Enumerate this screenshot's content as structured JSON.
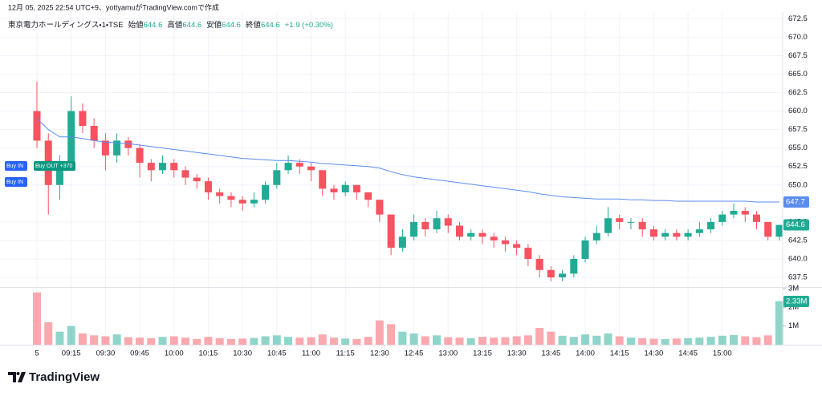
{
  "chart_data": {
    "type": "candlestick",
    "caption": "12月 05, 2025 22:54 UTC+9、yottyamuがTradingView.comで作成",
    "symbol": "東京電力ホールディングス・1・TSE",
    "legend": [
      {
        "label": "始値",
        "value": 644.6
      },
      {
        "label": "高値",
        "value": 644.6
      },
      {
        "label": "安値",
        "value": 644.6
      },
      {
        "label": "終値",
        "value": 644.6
      }
    ],
    "change": "+1.9 (+0.30%)",
    "up_color": "#22ab94",
    "down_color": "#f7525f",
    "categories": [
      "5",
      null,
      null,
      "09:15",
      null,
      null,
      "09:30",
      null,
      null,
      "09:45",
      null,
      null,
      "10:00",
      null,
      null,
      "10:15",
      null,
      null,
      "10:30",
      null,
      null,
      "10:45",
      null,
      null,
      "11:00",
      null,
      null,
      "11:15",
      null,
      null,
      "12:30",
      null,
      null,
      "12:45",
      null,
      null,
      "13:00",
      null,
      null,
      "13:15",
      null,
      null,
      "13:30",
      null,
      null,
      "13:45",
      null,
      null,
      "14:00",
      null,
      null,
      "14:15",
      null,
      null,
      "14:30",
      null,
      null,
      "14:45",
      null,
      null,
      "15:00",
      null,
      null,
      null,
      null,
      null
    ],
    "open": [
      660,
      656,
      650,
      653,
      660,
      658,
      656,
      654,
      656,
      655,
      653,
      652,
      653,
      652,
      651,
      650.5,
      649,
      648.5,
      648,
      647.5,
      648,
      650,
      652,
      653,
      652.5,
      652,
      649.5,
      649,
      650,
      649,
      648,
      646,
      641.5,
      643,
      645,
      644,
      645.5,
      644.5,
      643,
      643.5,
      643,
      642.5,
      642,
      641.5,
      640,
      638.5,
      637.5,
      638,
      640,
      642.5,
      643.5,
      645.5,
      645,
      645,
      644,
      643,
      643.5,
      643,
      643.5,
      644,
      645,
      646,
      646.5,
      646,
      645,
      643
    ],
    "high": [
      664,
      657,
      654,
      662,
      661,
      659,
      657,
      657,
      656.5,
      655.5,
      653.5,
      654,
      653.5,
      652.5,
      651.5,
      651,
      649.5,
      649,
      648.5,
      649,
      650.5,
      653,
      654,
      653.5,
      653,
      652,
      650,
      650.5,
      650,
      649,
      648,
      646,
      644,
      646,
      645.5,
      646.5,
      646,
      645,
      644,
      644,
      643.5,
      643,
      642.5,
      642,
      640.5,
      639,
      638.5,
      640.5,
      643,
      644.5,
      647,
      646,
      645.5,
      645.5,
      644.5,
      644,
      644,
      644,
      645,
      645.5,
      646.5,
      647.5,
      647,
      646.5,
      645,
      644.6
    ],
    "low": [
      655,
      646,
      648,
      652,
      657,
      655,
      652,
      653,
      654,
      651,
      650.5,
      651.5,
      651,
      650,
      649.5,
      648,
      647.5,
      647,
      646.5,
      647,
      647.5,
      649.5,
      651.5,
      651.5,
      650.5,
      648.5,
      648,
      648.5,
      648,
      647,
      645,
      640.5,
      641,
      642.5,
      643,
      643.5,
      643.5,
      642.5,
      642.5,
      642,
      641.5,
      641,
      640.5,
      639,
      637.5,
      637,
      637,
      637.5,
      639.5,
      642,
      643,
      644,
      644,
      643,
      642.5,
      642.5,
      642.5,
      642.5,
      643,
      643.5,
      644.5,
      645.5,
      645,
      644,
      642.5,
      642.5
    ],
    "close": [
      656,
      650,
      653,
      660,
      658,
      656,
      654,
      656,
      655,
      653,
      652,
      653,
      652,
      651,
      650.5,
      649,
      648.5,
      648,
      647.5,
      648,
      650,
      652,
      653,
      652.5,
      652,
      649.5,
      649,
      650,
      649,
      648,
      646,
      641.5,
      643,
      645,
      644,
      645.5,
      644.5,
      643,
      643.5,
      643,
      642.5,
      642,
      641.5,
      640,
      638.5,
      637.5,
      638,
      640,
      642.5,
      643.5,
      645.5,
      645,
      645,
      644,
      643,
      643.5,
      643,
      643.5,
      644,
      645,
      646,
      646.5,
      646,
      645,
      643,
      644.6
    ],
    "vwap": {
      "color": "#5b8def",
      "values": [
        659,
        657.5,
        656.5,
        656.5,
        656.3,
        656,
        655.8,
        655.7,
        655.6,
        655.4,
        655.2,
        655,
        654.8,
        654.6,
        654.4,
        654.2,
        654,
        653.8,
        653.6,
        653.5,
        653.4,
        653.3,
        653.3,
        653.2,
        653.1,
        652.9,
        652.8,
        652.7,
        652.6,
        652.5,
        652.3,
        651.8,
        651.4,
        651.1,
        650.9,
        650.7,
        650.5,
        650.3,
        650.1,
        649.9,
        649.7,
        649.5,
        649.3,
        649.1,
        648.8,
        648.6,
        648.4,
        648.3,
        648.2,
        648.1,
        648.1,
        648.1,
        648,
        648,
        647.9,
        647.9,
        647.8,
        647.8,
        647.8,
        647.8,
        647.8,
        647.8,
        647.8,
        647.7,
        647.7,
        647.7
      ]
    },
    "ylim": [
      636.2,
      673.4
    ],
    "yticks": [
      {
        "value": 672.5,
        "label": "672.5"
      },
      {
        "value": 670,
        "label": "670.0"
      },
      {
        "value": 667.5,
        "label": "667.5"
      },
      {
        "value": 665,
        "label": "665.0"
      },
      {
        "value": 662.5,
        "label": "662.5"
      },
      {
        "value": 660,
        "label": "660.0"
      },
      {
        "value": 657.5,
        "label": "657.5"
      },
      {
        "value": 655,
        "label": "655.0"
      },
      {
        "value": 652.5,
        "label": "652.5"
      },
      {
        "value": 650,
        "label": "650.0"
      },
      {
        "value": 645,
        "label": "645.0"
      },
      {
        "value": 642.5,
        "label": "642.5"
      },
      {
        "value": 640,
        "label": "640.0"
      },
      {
        "value": 637.5,
        "label": "637.5"
      }
    ],
    "volume": {
      "values": [
        2800000,
        1200000,
        700000,
        1000000,
        600000,
        500000,
        450000,
        550000,
        400000,
        380000,
        350000,
        420000,
        450000,
        380000,
        300000,
        420000,
        350000,
        300000,
        330000,
        360000,
        450000,
        500000,
        420000,
        380000,
        400000,
        550000,
        380000,
        330000,
        300000,
        420000,
        1300000,
        1100000,
        700000,
        600000,
        450000,
        500000,
        400000,
        380000,
        350000,
        420000,
        380000,
        400000,
        450000,
        500000,
        900000,
        700000,
        480000,
        420000,
        550000,
        480000,
        600000,
        450000,
        380000,
        350000,
        320000,
        300000,
        330000,
        350000,
        380000,
        420000,
        480000,
        520000,
        450000,
        400000,
        500000,
        2330000
      ],
      "badge_label": "2.33M",
      "ylim": [
        0,
        3090000
      ],
      "yticks": [
        {
          "value": 1000000,
          "label": "1M"
        },
        {
          "value": 2000000,
          "label": "2M"
        },
        {
          "value": 3000000,
          "label": "3M"
        }
      ]
    },
    "trades": [
      {
        "label": "Buy IN",
        "color": "#2962ff"
      },
      {
        "label": "Buy OUT +370",
        "color": "#089981"
      },
      {
        "label": "Buy IN",
        "color": "#2962ff"
      }
    ],
    "grid": true
  },
  "logo": "TradingView"
}
